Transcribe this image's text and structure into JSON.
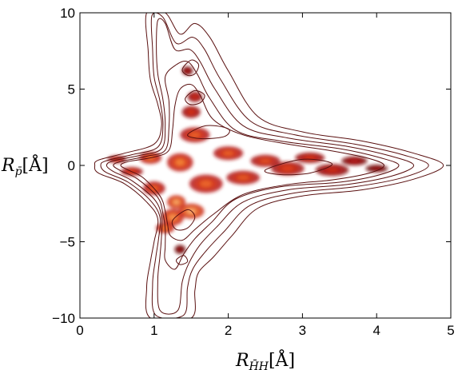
{
  "chart_data": {
    "type": "contour",
    "xlabel": {
      "symbol": "R",
      "subscript": "H̄H",
      "unit": "[Å]"
    },
    "ylabel": {
      "symbol": "R",
      "subscript": "p̄",
      "unit": "[Å]"
    },
    "xlim": [
      0,
      5
    ],
    "ylim": [
      -10,
      10
    ],
    "xticks": [
      0,
      1,
      2,
      3,
      4,
      5
    ],
    "yticks": [
      -10,
      -5,
      0,
      5,
      10
    ],
    "xtick_labels": [
      "0",
      "1",
      "2",
      "3",
      "4",
      "5"
    ],
    "ytick_labels": [
      "−10",
      "−5",
      "0",
      "5",
      "10"
    ],
    "grid": false,
    "colormap": [
      "#3a0000",
      "#7a0a0a",
      "#b81a1a",
      "#e0401a",
      "#f58a3a",
      "#ffd9a0"
    ],
    "line_color": "#5a1010",
    "outer_contours": [
      [
        [
          0.25,
          0.35
        ],
        [
          0.6,
          0.8
        ],
        [
          1.0,
          1.4
        ],
        [
          1.1,
          2.6
        ],
        [
          1.05,
          4.0
        ],
        [
          0.95,
          5.6
        ],
        [
          0.92,
          7.5
        ],
        [
          0.9,
          10.0
        ],
        [
          1.15,
          10.0
        ],
        [
          1.35,
          8.6
        ],
        [
          1.55,
          9.3
        ],
        [
          1.75,
          8.4
        ],
        [
          2.0,
          6.2
        ],
        [
          2.4,
          3.2
        ],
        [
          3.0,
          2.2
        ],
        [
          3.8,
          1.6
        ],
        [
          4.5,
          0.8
        ],
        [
          4.9,
          0.0
        ],
        [
          4.5,
          -0.9
        ],
        [
          3.8,
          -1.6
        ],
        [
          3.0,
          -2.0
        ],
        [
          2.4,
          -2.8
        ],
        [
          2.05,
          -4.6
        ],
        [
          1.8,
          -6.0
        ],
        [
          1.6,
          -7.0
        ],
        [
          1.55,
          -8.2
        ],
        [
          1.5,
          -10.0
        ],
        [
          0.95,
          -10.0
        ],
        [
          0.9,
          -8.0
        ],
        [
          0.95,
          -6.3
        ],
        [
          1.0,
          -5.0
        ],
        [
          1.05,
          -3.5
        ],
        [
          0.9,
          -2.4
        ],
        [
          0.6,
          -1.2
        ],
        [
          0.25,
          -0.5
        ],
        [
          0.2,
          0.0
        ]
      ],
      [
        [
          0.35,
          0.3
        ],
        [
          0.7,
          0.7
        ],
        [
          1.05,
          1.2
        ],
        [
          1.12,
          2.6
        ],
        [
          1.08,
          4.2
        ],
        [
          1.0,
          5.8
        ],
        [
          0.98,
          7.6
        ],
        [
          0.97,
          9.8
        ],
        [
          1.12,
          9.7
        ],
        [
          1.3,
          8.0
        ],
        [
          1.52,
          8.4
        ],
        [
          1.68,
          7.6
        ],
        [
          1.9,
          5.6
        ],
        [
          2.3,
          2.9
        ],
        [
          2.9,
          2.0
        ],
        [
          3.7,
          1.4
        ],
        [
          4.35,
          0.7
        ],
        [
          4.7,
          0.0
        ],
        [
          4.35,
          -0.8
        ],
        [
          3.7,
          -1.4
        ],
        [
          2.9,
          -1.8
        ],
        [
          2.3,
          -2.6
        ],
        [
          1.95,
          -4.3
        ],
        [
          1.7,
          -5.6
        ],
        [
          1.52,
          -6.8
        ],
        [
          1.45,
          -8.0
        ],
        [
          1.4,
          -9.8
        ],
        [
          1.02,
          -9.8
        ],
        [
          0.98,
          -7.8
        ],
        [
          1.02,
          -6.1
        ],
        [
          1.06,
          -4.8
        ],
        [
          1.08,
          -3.4
        ],
        [
          0.95,
          -2.3
        ],
        [
          0.65,
          -1.1
        ],
        [
          0.35,
          -0.45
        ],
        [
          0.28,
          0.0
        ]
      ],
      [
        [
          0.45,
          0.3
        ],
        [
          0.8,
          0.65
        ],
        [
          1.1,
          1.1
        ],
        [
          1.15,
          2.6
        ],
        [
          1.12,
          4.3
        ],
        [
          1.05,
          6.0
        ],
        [
          1.03,
          7.8
        ],
        [
          1.05,
          9.5
        ],
        [
          1.15,
          9.3
        ],
        [
          1.28,
          7.6
        ],
        [
          1.48,
          7.6
        ],
        [
          1.62,
          6.8
        ],
        [
          1.82,
          5.0
        ],
        [
          2.2,
          2.6
        ],
        [
          2.8,
          1.8
        ],
        [
          3.6,
          1.25
        ],
        [
          4.2,
          0.6
        ],
        [
          4.5,
          0.0
        ],
        [
          4.2,
          -0.7
        ],
        [
          3.6,
          -1.25
        ],
        [
          2.8,
          -1.6
        ],
        [
          2.2,
          -2.4
        ],
        [
          1.85,
          -4.0
        ],
        [
          1.62,
          -5.2
        ],
        [
          1.47,
          -6.4
        ],
        [
          1.38,
          -7.6
        ],
        [
          1.32,
          -9.5
        ],
        [
          1.08,
          -9.5
        ],
        [
          1.05,
          -7.5
        ],
        [
          1.08,
          -5.9
        ],
        [
          1.1,
          -4.6
        ],
        [
          1.1,
          -3.3
        ],
        [
          1.0,
          -2.2
        ],
        [
          0.7,
          -1.0
        ],
        [
          0.45,
          -0.4
        ],
        [
          0.36,
          0.0
        ]
      ],
      [
        [
          0.55,
          0.25
        ],
        [
          0.9,
          0.6
        ],
        [
          1.15,
          1.0
        ],
        [
          1.2,
          2.5
        ],
        [
          1.2,
          4.2
        ],
        [
          1.15,
          5.8
        ],
        [
          1.3,
          6.6
        ],
        [
          1.45,
          6.8
        ],
        [
          1.58,
          6.0
        ],
        [
          1.75,
          4.4
        ],
        [
          2.1,
          2.3
        ],
        [
          2.7,
          1.6
        ],
        [
          3.5,
          1.1
        ],
        [
          4.05,
          0.5
        ],
        [
          4.3,
          0.0
        ],
        [
          4.05,
          -0.6
        ],
        [
          3.5,
          -1.1
        ],
        [
          2.7,
          -1.4
        ],
        [
          2.1,
          -2.2
        ],
        [
          1.78,
          -3.7
        ],
        [
          1.55,
          -4.8
        ],
        [
          1.4,
          -5.8
        ],
        [
          1.28,
          -6.8
        ],
        [
          1.15,
          -6.2
        ],
        [
          1.15,
          -5.3
        ],
        [
          1.15,
          -4.2
        ],
        [
          1.12,
          -3.2
        ],
        [
          1.05,
          -2.1
        ],
        [
          0.78,
          -0.9
        ],
        [
          0.55,
          -0.35
        ],
        [
          0.45,
          0.0
        ]
      ],
      [
        [
          0.65,
          0.25
        ],
        [
          1.0,
          0.55
        ],
        [
          1.2,
          1.0
        ],
        [
          1.25,
          2.4
        ],
        [
          1.28,
          3.9
        ],
        [
          1.35,
          5.0
        ],
        [
          1.5,
          5.3
        ],
        [
          1.62,
          4.6
        ],
        [
          1.8,
          3.0
        ],
        [
          2.2,
          2.0
        ],
        [
          2.8,
          1.4
        ],
        [
          3.4,
          0.95
        ],
        [
          3.9,
          0.45
        ],
        [
          4.1,
          0.0
        ],
        [
          3.9,
          -0.5
        ],
        [
          3.4,
          -0.95
        ],
        [
          2.8,
          -1.25
        ],
        [
          2.2,
          -1.9
        ],
        [
          1.8,
          -3.2
        ],
        [
          1.55,
          -4.2
        ],
        [
          1.38,
          -4.9
        ],
        [
          1.22,
          -4.6
        ],
        [
          1.18,
          -3.8
        ],
        [
          1.15,
          -3.0
        ],
        [
          1.08,
          -2.0
        ],
        [
          0.85,
          -0.8
        ],
        [
          0.65,
          -0.3
        ],
        [
          0.55,
          0.0
        ]
      ],
      [
        [
          1.42,
          4.4
        ],
        [
          1.55,
          4.9
        ],
        [
          1.68,
          4.6
        ],
        [
          1.62,
          4.1
        ],
        [
          1.48,
          4.0
        ]
      ],
      [
        [
          1.38,
          6.3
        ],
        [
          1.5,
          6.9
        ],
        [
          1.6,
          6.6
        ],
        [
          1.55,
          6.0
        ],
        [
          1.45,
          5.9
        ]
      ],
      [
        [
          1.45,
          2.0
        ],
        [
          1.7,
          2.6
        ],
        [
          2.0,
          2.4
        ],
        [
          1.95,
          1.9
        ],
        [
          1.65,
          1.75
        ]
      ],
      [
        [
          1.25,
          -3.6
        ],
        [
          1.45,
          -2.9
        ],
        [
          1.55,
          -3.4
        ],
        [
          1.45,
          -4.1
        ],
        [
          1.3,
          -4.2
        ]
      ],
      [
        [
          1.3,
          -6.2
        ],
        [
          1.4,
          -5.9
        ],
        [
          1.45,
          -6.3
        ],
        [
          1.35,
          -6.5
        ]
      ],
      [
        [
          2.5,
          -0.3
        ],
        [
          3.0,
          0.4
        ],
        [
          3.4,
          0.1
        ],
        [
          3.1,
          -0.5
        ],
        [
          2.7,
          -0.6
        ]
      ]
    ],
    "hotspots": [
      {
        "x": 0.5,
        "y": 0.4,
        "w": 0.25,
        "h": 0.5,
        "v": 0.55
      },
      {
        "x": 0.7,
        "y": -0.4,
        "w": 0.3,
        "h": 0.6,
        "v": 0.6
      },
      {
        "x": 0.95,
        "y": 0.5,
        "w": 0.3,
        "h": 0.8,
        "v": 0.75
      },
      {
        "x": 1.0,
        "y": -1.5,
        "w": 0.3,
        "h": 0.9,
        "v": 0.7
      },
      {
        "x": 1.25,
        "y": -3.4,
        "w": 0.3,
        "h": 1.1,
        "v": 0.85
      },
      {
        "x": 1.3,
        "y": -2.4,
        "w": 0.25,
        "h": 0.9,
        "v": 0.9
      },
      {
        "x": 1.15,
        "y": -4.1,
        "w": 0.25,
        "h": 0.7,
        "v": 0.8
      },
      {
        "x": 1.5,
        "y": -3.0,
        "w": 0.35,
        "h": 1.0,
        "v": 0.92
      },
      {
        "x": 1.35,
        "y": 0.2,
        "w": 0.35,
        "h": 1.2,
        "v": 0.8
      },
      {
        "x": 1.55,
        "y": 2.0,
        "w": 0.4,
        "h": 1.0,
        "v": 0.7
      },
      {
        "x": 1.5,
        "y": 3.5,
        "w": 0.25,
        "h": 0.8,
        "v": 0.55
      },
      {
        "x": 1.55,
        "y": 4.5,
        "w": 0.2,
        "h": 0.7,
        "v": 0.5
      },
      {
        "x": 1.7,
        "y": -1.2,
        "w": 0.45,
        "h": 1.2,
        "v": 0.72
      },
      {
        "x": 2.0,
        "y": 0.8,
        "w": 0.4,
        "h": 0.9,
        "v": 0.7
      },
      {
        "x": 2.2,
        "y": -0.8,
        "w": 0.45,
        "h": 0.9,
        "v": 0.68
      },
      {
        "x": 2.5,
        "y": 0.3,
        "w": 0.4,
        "h": 0.8,
        "v": 0.65
      },
      {
        "x": 2.8,
        "y": -0.2,
        "w": 0.45,
        "h": 0.9,
        "v": 0.62
      },
      {
        "x": 3.1,
        "y": 0.5,
        "w": 0.4,
        "h": 0.7,
        "v": 0.55
      },
      {
        "x": 3.4,
        "y": -0.3,
        "w": 0.45,
        "h": 0.8,
        "v": 0.5
      },
      {
        "x": 3.7,
        "y": 0.3,
        "w": 0.35,
        "h": 0.6,
        "v": 0.4
      },
      {
        "x": 4.0,
        "y": -0.2,
        "w": 0.3,
        "h": 0.5,
        "v": 0.3
      },
      {
        "x": 1.45,
        "y": 6.2,
        "w": 0.15,
        "h": 0.6,
        "v": 0.35
      },
      {
        "x": 1.35,
        "y": -5.5,
        "w": 0.15,
        "h": 0.6,
        "v": 0.3
      }
    ]
  }
}
